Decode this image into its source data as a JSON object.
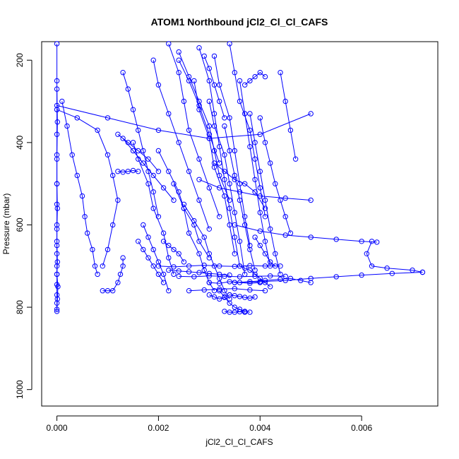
{
  "chart_data": {
    "type": "line",
    "title": "ATOM1 Northbound jCl2_Cl_Cl_CAFS",
    "xlabel": "jCl2_Cl_Cl_CAFS",
    "ylabel": "Pressure (mbar)",
    "xlim": [
      -0.0003,
      0.0075
    ],
    "ylim": [
      1040,
      155
    ],
    "y_reversed": true,
    "grid": false,
    "legend": "none",
    "color": "#0000ff",
    "marker": "open-circle",
    "x_ticks": [
      {
        "value": 0.0,
        "label": "0.000"
      },
      {
        "value": 0.002,
        "label": "0.002"
      },
      {
        "value": 0.004,
        "label": "0.004"
      },
      {
        "value": 0.006,
        "label": "0.006"
      }
    ],
    "y_ticks": [
      {
        "value": 200,
        "label": "200"
      },
      {
        "value": 400,
        "label": "400"
      },
      {
        "value": 600,
        "label": "600"
      },
      {
        "value": 800,
        "label": "800"
      },
      {
        "value": 1000,
        "label": "1000"
      }
    ],
    "series": [
      {
        "x": [
          0.0,
          0.0,
          0.0,
          0.0,
          0.0,
          0.0,
          0.0,
          0.0,
          0.0,
          0.0,
          0.0,
          0.0,
          0.0,
          0.0,
          0.0,
          0.0
        ],
        "y": [
          810,
          790,
          770,
          745,
          720,
          700,
          670,
          640,
          600,
          550,
          500,
          440,
          380,
          320,
          250,
          160
        ]
      },
      {
        "x": [
          0.0,
          1e-05,
          2e-05,
          0.0,
          1e-05,
          0.0,
          0.0,
          1e-05,
          0.0,
          0.0,
          1e-05,
          0.0
        ],
        "y": [
          805,
          780,
          750,
          720,
          690,
          650,
          610,
          560,
          500,
          430,
          350,
          270
        ]
      },
      {
        "x": [
          0.0001,
          0.0002,
          0.0003,
          0.0004,
          0.0005,
          0.00055,
          0.0006,
          0.0007,
          0.00075,
          0.0008
        ],
        "y": [
          300,
          360,
          430,
          480,
          530,
          580,
          620,
          660,
          700,
          720
        ]
      },
      {
        "x": [
          0.0,
          0.0004,
          0.0008,
          0.001,
          0.0011,
          0.0012,
          0.0011,
          0.001,
          0.0009
        ],
        "y": [
          320,
          340,
          370,
          430,
          480,
          540,
          600,
          660,
          700
        ]
      },
      {
        "x": [
          0.0009,
          0.001,
          0.0011,
          0.0012,
          0.00125,
          0.0013,
          0.0013
        ],
        "y": [
          760,
          760,
          760,
          740,
          720,
          700,
          680
        ]
      },
      {
        "x": [
          0.0,
          0.001,
          0.002,
          0.003,
          0.004,
          0.005
        ],
        "y": [
          310,
          340,
          370,
          390,
          380,
          330
        ]
      },
      {
        "x": [
          0.0013,
          0.0015,
          0.0017,
          0.0019,
          0.0021,
          0.0023
        ],
        "y": [
          390,
          420,
          450,
          480,
          510,
          540
        ]
      },
      {
        "x": [
          0.0013,
          0.0014,
          0.0015,
          0.0016,
          0.0017,
          0.0018,
          0.0019,
          0.002
        ],
        "y": [
          230,
          270,
          320,
          370,
          420,
          470,
          520,
          580
        ]
      },
      {
        "x": [
          0.0015,
          0.0016,
          0.0018,
          0.0019,
          0.0021,
          0.0022,
          0.0023
        ],
        "y": [
          400,
          440,
          500,
          560,
          620,
          680,
          720
        ]
      },
      {
        "x": [
          0.0017,
          0.0018,
          0.0019,
          0.002,
          0.0021,
          0.0022
        ],
        "y": [
          600,
          630,
          660,
          690,
          720,
          760
        ]
      },
      {
        "x": [
          0.0019,
          0.002,
          0.0022,
          0.0024,
          0.0026,
          0.0028,
          0.003
        ],
        "y": [
          200,
          260,
          330,
          400,
          470,
          540,
          610
        ]
      },
      {
        "x": [
          0.002,
          0.0022,
          0.0024,
          0.0025,
          0.0027,
          0.0028,
          0.003
        ],
        "y": [
          420,
          470,
          520,
          560,
          600,
          640,
          680
        ]
      },
      {
        "x": [
          0.0022,
          0.0024,
          0.0025,
          0.0026,
          0.0028,
          0.003,
          0.0032
        ],
        "y": [
          160,
          230,
          300,
          370,
          440,
          510,
          580
        ]
      },
      {
        "x": [
          0.0023,
          0.0025,
          0.0026,
          0.0028,
          0.0029,
          0.003,
          0.0031
        ],
        "y": [
          500,
          560,
          620,
          670,
          710,
          740,
          760
        ]
      },
      {
        "x": [
          0.0024,
          0.0026,
          0.0028,
          0.003,
          0.0031,
          0.0032,
          0.0034
        ],
        "y": [
          180,
          240,
          300,
          360,
          420,
          480,
          540
        ]
      },
      {
        "x": [
          0.0025,
          0.0027,
          0.0029,
          0.003,
          0.0031,
          0.0032,
          0.0033,
          0.0034
        ],
        "y": [
          550,
          590,
          630,
          670,
          700,
          730,
          760,
          780
        ]
      },
      {
        "x": [
          0.0027,
          0.0028,
          0.003,
          0.0031,
          0.0033,
          0.0034,
          0.0035
        ],
        "y": [
          250,
          320,
          390,
          460,
          530,
          600,
          670
        ]
      },
      {
        "x": [
          0.0028,
          0.003,
          0.0031,
          0.0032,
          0.0033,
          0.0034,
          0.0035,
          0.0036
        ],
        "y": [
          170,
          250,
          330,
          410,
          490,
          560,
          630,
          700
        ]
      },
      {
        "x": [
          0.003,
          0.0031,
          0.0033,
          0.0034,
          0.0035,
          0.0036,
          0.0037
        ],
        "y": [
          300,
          360,
          430,
          500,
          570,
          640,
          720
        ]
      },
      {
        "x": [
          0.0031,
          0.0032,
          0.0034,
          0.0035,
          0.0036,
          0.0037,
          0.0038
        ],
        "y": [
          190,
          260,
          340,
          420,
          500,
          580,
          650
        ]
      },
      {
        "x": [
          0.0033,
          0.0034,
          0.0035,
          0.0036,
          0.0037,
          0.0038,
          0.0039
        ],
        "y": [
          360,
          420,
          480,
          540,
          600,
          660,
          710
        ]
      },
      {
        "x": [
          0.0034,
          0.0035,
          0.0036,
          0.0038,
          0.0039,
          0.004,
          0.0041
        ],
        "y": [
          160,
          230,
          300,
          370,
          440,
          510,
          580
        ]
      },
      {
        "x": [
          0.0036,
          0.0037,
          0.0038,
          0.0039,
          0.004,
          0.0041,
          0.0042
        ],
        "y": [
          250,
          330,
          410,
          490,
          570,
          640,
          700
        ]
      },
      {
        "x": [
          0.0037,
          0.0038,
          0.0039,
          0.004,
          0.0041
        ],
        "y": [
          260,
          250,
          240,
          230,
          240
        ]
      },
      {
        "x": [
          0.0038,
          0.0039,
          0.004,
          0.0041,
          0.0042,
          0.0043,
          0.0044
        ],
        "y": [
          330,
          400,
          470,
          540,
          610,
          670,
          720
        ]
      },
      {
        "x": [
          0.004,
          0.0041,
          0.0042,
          0.0043,
          0.0044,
          0.0045,
          0.0046
        ],
        "y": [
          340,
          400,
          450,
          500,
          540,
          580,
          620
        ]
      },
      {
        "x": [
          0.0044,
          0.0045,
          0.0046,
          0.0047
        ],
        "y": [
          230,
          300,
          370,
          440
        ]
      },
      {
        "x": [
          0.0028,
          0.0032,
          0.0036,
          0.004,
          0.0045,
          0.005
        ],
        "y": [
          490,
          510,
          520,
          530,
          535,
          540
        ]
      },
      {
        "x": [
          0.0035,
          0.004,
          0.0045,
          0.005,
          0.0055,
          0.006,
          0.0063
        ],
        "y": [
          600,
          615,
          625,
          630,
          635,
          640,
          642
        ]
      },
      {
        "x": [
          0.0062,
          0.0061,
          0.0062,
          0.0065,
          0.007,
          0.0072
        ],
        "y": [
          640,
          670,
          700,
          705,
          710,
          715
        ]
      },
      {
        "x": [
          0.0072,
          0.0066,
          0.006,
          0.0055,
          0.005,
          0.0045,
          0.004,
          0.0035
        ],
        "y": [
          715,
          718,
          722,
          726,
          730,
          735,
          738,
          740
        ]
      },
      {
        "x": [
          0.0035,
          0.0038,
          0.0041,
          0.0044,
          0.0046,
          0.0048,
          0.005
        ],
        "y": [
          740,
          738,
          735,
          732,
          730,
          735,
          740
        ]
      },
      {
        "x": [
          0.002,
          0.0023,
          0.0026,
          0.0029,
          0.0032,
          0.0035,
          0.0038,
          0.0041,
          0.0044
        ],
        "y": [
          700,
          702,
          700,
          698,
          700,
          701,
          699,
          700,
          700
        ]
      },
      {
        "x": [
          0.0022,
          0.0024,
          0.0026,
          0.0028,
          0.003,
          0.0032,
          0.0034
        ],
        "y": [
          710,
          712,
          714,
          716,
          718,
          720,
          722
        ]
      },
      {
        "x": [
          0.0024,
          0.0027,
          0.003,
          0.0033,
          0.0036,
          0.0039,
          0.0042,
          0.0045
        ],
        "y": [
          725,
          726,
          724,
          725,
          726,
          725,
          724,
          725
        ]
      },
      {
        "x": [
          0.0026,
          0.0029,
          0.0032,
          0.0035,
          0.0038,
          0.0041
        ],
        "y": [
          760,
          758,
          756,
          755,
          758,
          760
        ]
      },
      {
        "x": [
          0.003,
          0.0032,
          0.0034,
          0.0036,
          0.0038,
          0.004
        ],
        "y": [
          740,
          742,
          738,
          740,
          742,
          740
        ]
      },
      {
        "x": [
          0.0032,
          0.0033,
          0.0034,
          0.0035,
          0.0036,
          0.0037,
          0.0038
        ],
        "y": [
          760,
          775,
          790,
          800,
          805,
          810,
          812
        ]
      },
      {
        "x": [
          0.0033,
          0.0034,
          0.0035,
          0.0036,
          0.0037
        ],
        "y": [
          810,
          812,
          812,
          811,
          812
        ]
      },
      {
        "x": [
          0.003,
          0.0031,
          0.0032,
          0.0033,
          0.0034
        ],
        "y": [
          770,
          775,
          780,
          776,
          770
        ]
      },
      {
        "x": [
          0.0034,
          0.0035,
          0.0036,
          0.0037,
          0.0038,
          0.0039
        ],
        "y": [
          770,
          772,
          774,
          776,
          778,
          775
        ]
      },
      {
        "x": [
          0.0036,
          0.0037,
          0.0038,
          0.0039,
          0.004,
          0.0041,
          0.0042
        ],
        "y": [
          700,
          705,
          710,
          720,
          730,
          740,
          750
        ]
      },
      {
        "x": [
          0.0039,
          0.004,
          0.0041,
          0.0042,
          0.0043
        ],
        "y": [
          630,
          650,
          670,
          690,
          700
        ]
      },
      {
        "x": [
          0.0012,
          0.0014,
          0.0016,
          0.0018,
          0.002
        ],
        "y": [
          380,
          400,
          420,
          440,
          470
        ]
      },
      {
        "x": [
          0.0012,
          0.0013,
          0.0014,
          0.0015,
          0.0016
        ],
        "y": [
          470,
          472,
          470,
          468,
          470
        ]
      },
      {
        "x": [
          0.0016,
          0.0017,
          0.0018,
          0.0019,
          0.002,
          0.0021
        ],
        "y": [
          640,
          660,
          680,
          700,
          720,
          740
        ]
      },
      {
        "x": [
          0.0021,
          0.0022,
          0.0023,
          0.0024,
          0.0025
        ],
        "y": [
          640,
          650,
          660,
          670,
          690
        ]
      },
      {
        "x": [
          0.0024,
          0.0026,
          0.0028,
          0.003,
          0.0032
        ],
        "y": [
          200,
          250,
          310,
          380,
          450
        ]
      },
      {
        "x": [
          0.0029,
          0.003,
          0.0031,
          0.0032,
          0.0033
        ],
        "y": [
          190,
          220,
          260,
          300,
          340
        ]
      },
      {
        "x": [
          0.0031,
          0.0033,
          0.0035,
          0.0037,
          0.0039,
          0.0041
        ],
        "y": [
          450,
          470,
          490,
          500,
          520,
          560
        ]
      }
    ]
  }
}
